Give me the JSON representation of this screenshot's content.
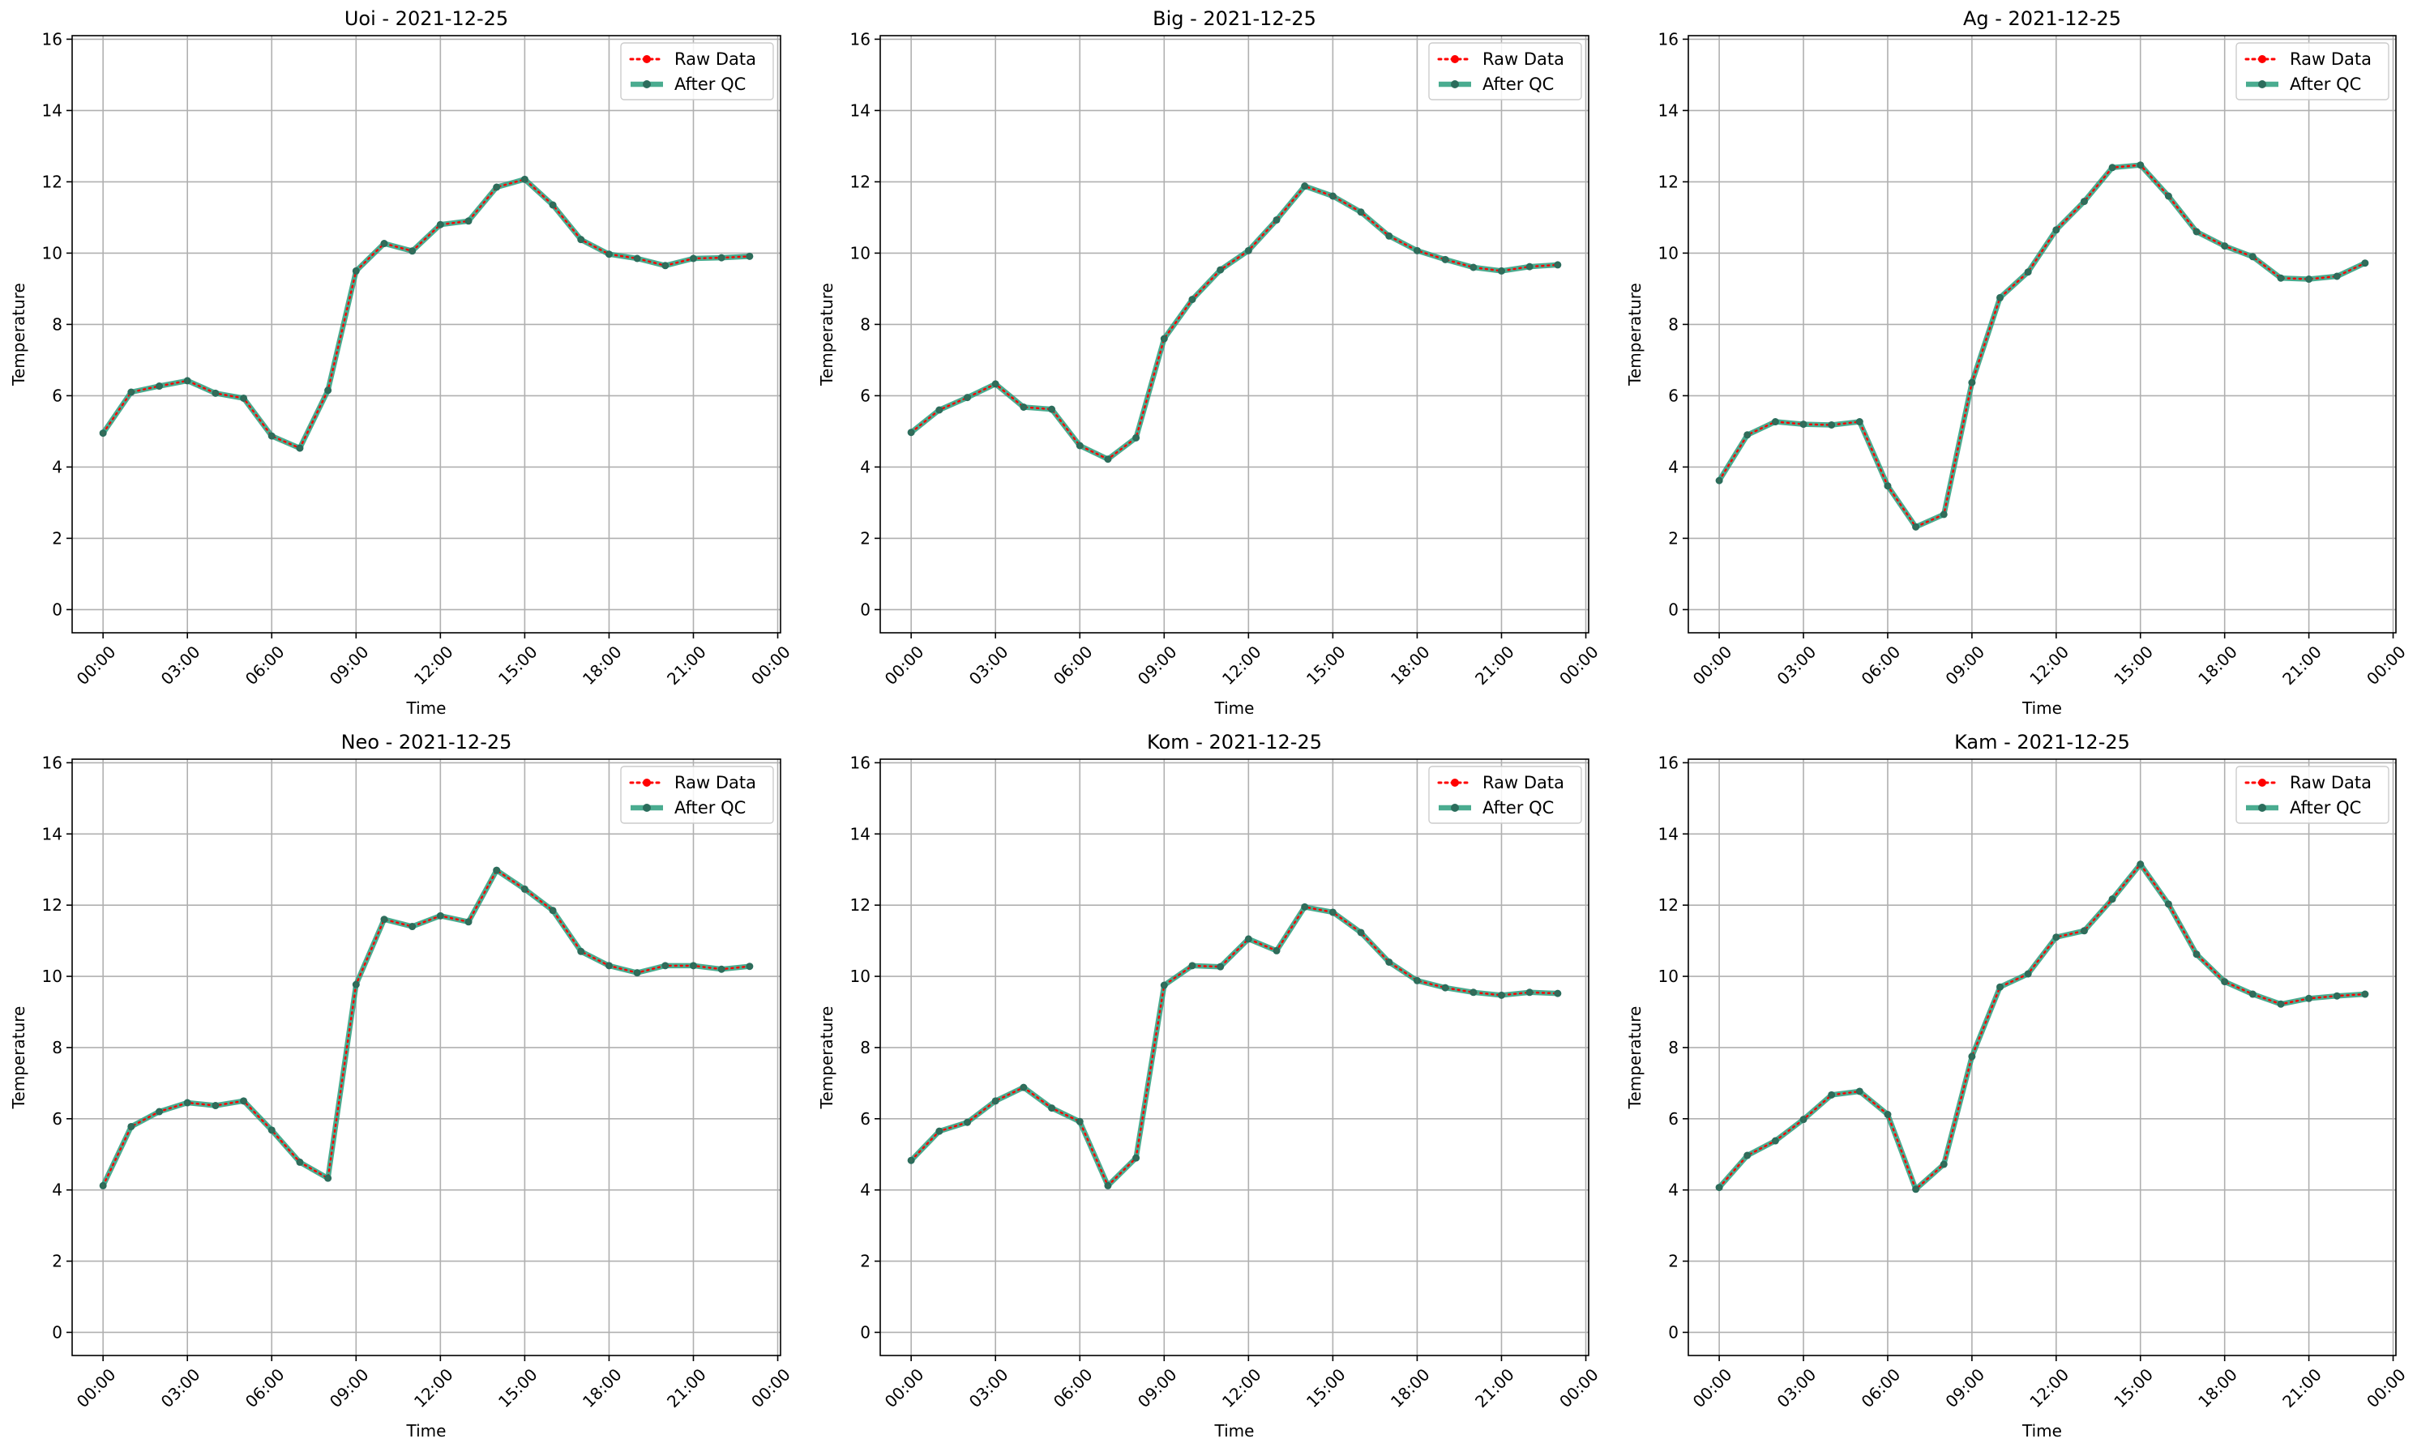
{
  "colors": {
    "raw": "#ff0000",
    "qc": "#2a9d7c",
    "grid": "#b0b0b0",
    "axis": "#000000"
  },
  "chart_data": [
    {
      "type": "line",
      "title": "Uoi - 2021-12-25",
      "xlabel": "Time",
      "ylabel": "Temperature",
      "x": [
        0,
        1,
        2,
        3,
        4,
        5,
        6,
        7,
        8,
        9,
        10,
        11,
        12,
        13,
        14,
        15,
        16,
        17,
        18,
        19,
        20,
        21,
        22,
        23
      ],
      "xlim": [
        -1.1,
        24.1
      ],
      "ylim": [
        -0.65,
        16.1
      ],
      "xticks": [
        0,
        3,
        6,
        9,
        12,
        15,
        18,
        21,
        24
      ],
      "xtick_labels": [
        "00:00",
        "03:00",
        "06:00",
        "09:00",
        "12:00",
        "15:00",
        "18:00",
        "21:00",
        "00:00"
      ],
      "yticks": [
        0,
        2,
        4,
        6,
        8,
        10,
        12,
        14,
        16
      ],
      "grid": true,
      "legend": "top-right",
      "series": [
        {
          "name": "Raw Data",
          "values": [
            4.95,
            6.1,
            6.27,
            6.42,
            6.07,
            5.93,
            4.87,
            4.53,
            6.15,
            9.5,
            10.27,
            10.06,
            10.8,
            10.9,
            11.85,
            12.07,
            11.35,
            10.38,
            9.97,
            9.85,
            9.65,
            9.85,
            9.87,
            9.91
          ]
        },
        {
          "name": "After QC",
          "values": [
            4.95,
            6.1,
            6.27,
            6.42,
            6.07,
            5.93,
            4.87,
            4.53,
            6.15,
            9.5,
            10.27,
            10.06,
            10.8,
            10.9,
            11.85,
            12.07,
            11.35,
            10.38,
            9.97,
            9.85,
            9.65,
            9.85,
            9.87,
            9.91
          ]
        }
      ]
    },
    {
      "type": "line",
      "title": "Big - 2021-12-25",
      "xlabel": "Time",
      "ylabel": "Temperature",
      "x": [
        0,
        1,
        2,
        3,
        4,
        5,
        6,
        7,
        8,
        9,
        10,
        11,
        12,
        13,
        14,
        15,
        16,
        17,
        18,
        19,
        20,
        21,
        22,
        23
      ],
      "xlim": [
        -1.1,
        24.1
      ],
      "ylim": [
        -0.65,
        16.1
      ],
      "xticks": [
        0,
        3,
        6,
        9,
        12,
        15,
        18,
        21,
        24
      ],
      "xtick_labels": [
        "00:00",
        "03:00",
        "06:00",
        "09:00",
        "12:00",
        "15:00",
        "18:00",
        "21:00",
        "00:00"
      ],
      "yticks": [
        0,
        2,
        4,
        6,
        8,
        10,
        12,
        14,
        16
      ],
      "grid": true,
      "legend": "top-right",
      "series": [
        {
          "name": "Raw Data",
          "values": [
            4.97,
            5.6,
            5.95,
            6.33,
            5.68,
            5.62,
            4.6,
            4.22,
            4.82,
            7.6,
            8.7,
            9.53,
            10.07,
            10.93,
            11.88,
            11.6,
            11.15,
            10.48,
            10.07,
            9.82,
            9.6,
            9.5,
            9.62,
            9.67
          ]
        },
        {
          "name": "After QC",
          "values": [
            4.97,
            5.6,
            5.95,
            6.33,
            5.68,
            5.62,
            4.6,
            4.22,
            4.82,
            7.6,
            8.7,
            9.53,
            10.07,
            10.93,
            11.88,
            11.6,
            11.15,
            10.48,
            10.07,
            9.82,
            9.6,
            9.5,
            9.62,
            9.67
          ]
        }
      ]
    },
    {
      "type": "line",
      "title": "Ag - 2021-12-25",
      "xlabel": "Time",
      "ylabel": "Temperature",
      "x": [
        0,
        1,
        2,
        3,
        4,
        5,
        6,
        7,
        8,
        9,
        10,
        11,
        12,
        13,
        14,
        15,
        16,
        17,
        18,
        19,
        20,
        21,
        22,
        23
      ],
      "xlim": [
        -1.1,
        24.1
      ],
      "ylim": [
        -0.65,
        16.1
      ],
      "xticks": [
        0,
        3,
        6,
        9,
        12,
        15,
        18,
        21,
        24
      ],
      "xtick_labels": [
        "00:00",
        "03:00",
        "06:00",
        "09:00",
        "12:00",
        "15:00",
        "18:00",
        "21:00",
        "00:00"
      ],
      "yticks": [
        0,
        2,
        4,
        6,
        8,
        10,
        12,
        14,
        16
      ],
      "grid": true,
      "legend": "top-right",
      "series": [
        {
          "name": "Raw Data",
          "values": [
            3.62,
            4.9,
            5.27,
            5.2,
            5.18,
            5.27,
            3.47,
            2.32,
            2.67,
            6.37,
            8.75,
            9.47,
            10.65,
            11.45,
            12.4,
            12.47,
            11.6,
            10.6,
            10.2,
            9.9,
            9.3,
            9.27,
            9.35,
            9.72
          ]
        },
        {
          "name": "After QC",
          "values": [
            3.62,
            4.9,
            5.27,
            5.2,
            5.18,
            5.27,
            3.47,
            2.32,
            2.67,
            6.37,
            8.75,
            9.47,
            10.65,
            11.45,
            12.4,
            12.47,
            11.6,
            10.6,
            10.2,
            9.9,
            9.3,
            9.27,
            9.35,
            9.72
          ]
        }
      ]
    },
    {
      "type": "line",
      "title": "Neo - 2021-12-25",
      "xlabel": "Time",
      "ylabel": "Temperature",
      "x": [
        0,
        1,
        2,
        3,
        4,
        5,
        6,
        7,
        8,
        9,
        10,
        11,
        12,
        13,
        14,
        15,
        16,
        17,
        18,
        19,
        20,
        21,
        22,
        23
      ],
      "xlim": [
        -1.1,
        24.1
      ],
      "ylim": [
        -0.65,
        16.1
      ],
      "xticks": [
        0,
        3,
        6,
        9,
        12,
        15,
        18,
        21,
        24
      ],
      "xtick_labels": [
        "00:00",
        "03:00",
        "06:00",
        "09:00",
        "12:00",
        "15:00",
        "18:00",
        "21:00",
        "00:00"
      ],
      "yticks": [
        0,
        2,
        4,
        6,
        8,
        10,
        12,
        14,
        16
      ],
      "grid": true,
      "legend": "top-right",
      "series": [
        {
          "name": "Raw Data",
          "values": [
            4.12,
            5.78,
            6.2,
            6.45,
            6.37,
            6.5,
            5.68,
            4.78,
            4.33,
            9.77,
            11.6,
            11.4,
            11.7,
            11.53,
            12.98,
            12.45,
            11.85,
            10.7,
            10.3,
            10.1,
            10.3,
            10.3,
            10.2,
            10.28
          ]
        },
        {
          "name": "After QC",
          "values": [
            4.12,
            5.78,
            6.2,
            6.45,
            6.37,
            6.5,
            5.68,
            4.78,
            4.33,
            9.77,
            11.6,
            11.4,
            11.7,
            11.53,
            12.98,
            12.45,
            11.85,
            10.7,
            10.3,
            10.1,
            10.3,
            10.3,
            10.2,
            10.28
          ]
        }
      ]
    },
    {
      "type": "line",
      "title": "Kom - 2021-12-25",
      "xlabel": "Time",
      "ylabel": "Temperature",
      "x": [
        0,
        1,
        2,
        3,
        4,
        5,
        6,
        7,
        8,
        9,
        10,
        11,
        12,
        13,
        14,
        15,
        16,
        17,
        18,
        19,
        20,
        21,
        22,
        23
      ],
      "xlim": [
        -1.1,
        24.1
      ],
      "ylim": [
        -0.65,
        16.1
      ],
      "xticks": [
        0,
        3,
        6,
        9,
        12,
        15,
        18,
        21,
        24
      ],
      "xtick_labels": [
        "00:00",
        "03:00",
        "06:00",
        "09:00",
        "12:00",
        "15:00",
        "18:00",
        "21:00",
        "00:00"
      ],
      "yticks": [
        0,
        2,
        4,
        6,
        8,
        10,
        12,
        14,
        16
      ],
      "grid": true,
      "legend": "top-right",
      "series": [
        {
          "name": "Raw Data",
          "values": [
            4.83,
            5.65,
            5.9,
            6.5,
            6.88,
            6.3,
            5.92,
            4.12,
            4.9,
            9.75,
            10.3,
            10.27,
            11.05,
            10.72,
            11.95,
            11.8,
            11.23,
            10.4,
            9.88,
            9.68,
            9.55,
            9.47,
            9.55,
            9.52
          ]
        },
        {
          "name": "After QC",
          "values": [
            4.83,
            5.65,
            5.9,
            6.5,
            6.88,
            6.3,
            5.92,
            4.12,
            4.9,
            9.75,
            10.3,
            10.27,
            11.05,
            10.72,
            11.95,
            11.8,
            11.23,
            10.4,
            9.88,
            9.68,
            9.55,
            9.47,
            9.55,
            9.52
          ]
        }
      ]
    },
    {
      "type": "line",
      "title": "Kam - 2021-12-25",
      "xlabel": "Time",
      "ylabel": "Temperature",
      "x": [
        0,
        1,
        2,
        3,
        4,
        5,
        6,
        7,
        8,
        9,
        10,
        11,
        12,
        13,
        14,
        15,
        16,
        17,
        18,
        19,
        20,
        21,
        22,
        23
      ],
      "xlim": [
        -1.1,
        24.1
      ],
      "ylim": [
        -0.65,
        16.1
      ],
      "xticks": [
        0,
        3,
        6,
        9,
        12,
        15,
        18,
        21,
        24
      ],
      "xtick_labels": [
        "00:00",
        "03:00",
        "06:00",
        "09:00",
        "12:00",
        "15:00",
        "18:00",
        "21:00",
        "00:00"
      ],
      "yticks": [
        0,
        2,
        4,
        6,
        8,
        10,
        12,
        14,
        16
      ],
      "grid": true,
      "legend": "top-right",
      "series": [
        {
          "name": "Raw Data",
          "values": [
            4.07,
            4.97,
            5.38,
            5.98,
            6.67,
            6.77,
            6.12,
            4.02,
            4.72,
            7.75,
            9.7,
            10.07,
            11.1,
            11.28,
            12.17,
            13.15,
            12.03,
            10.62,
            9.85,
            9.5,
            9.22,
            9.38,
            9.45,
            9.5
          ]
        },
        {
          "name": "After QC",
          "values": [
            4.07,
            4.97,
            5.38,
            5.98,
            6.67,
            6.77,
            6.12,
            4.02,
            4.72,
            7.75,
            9.7,
            10.07,
            11.1,
            11.28,
            12.17,
            13.15,
            12.03,
            10.62,
            9.85,
            9.5,
            9.22,
            9.38,
            9.45,
            9.5
          ]
        }
      ]
    }
  ]
}
